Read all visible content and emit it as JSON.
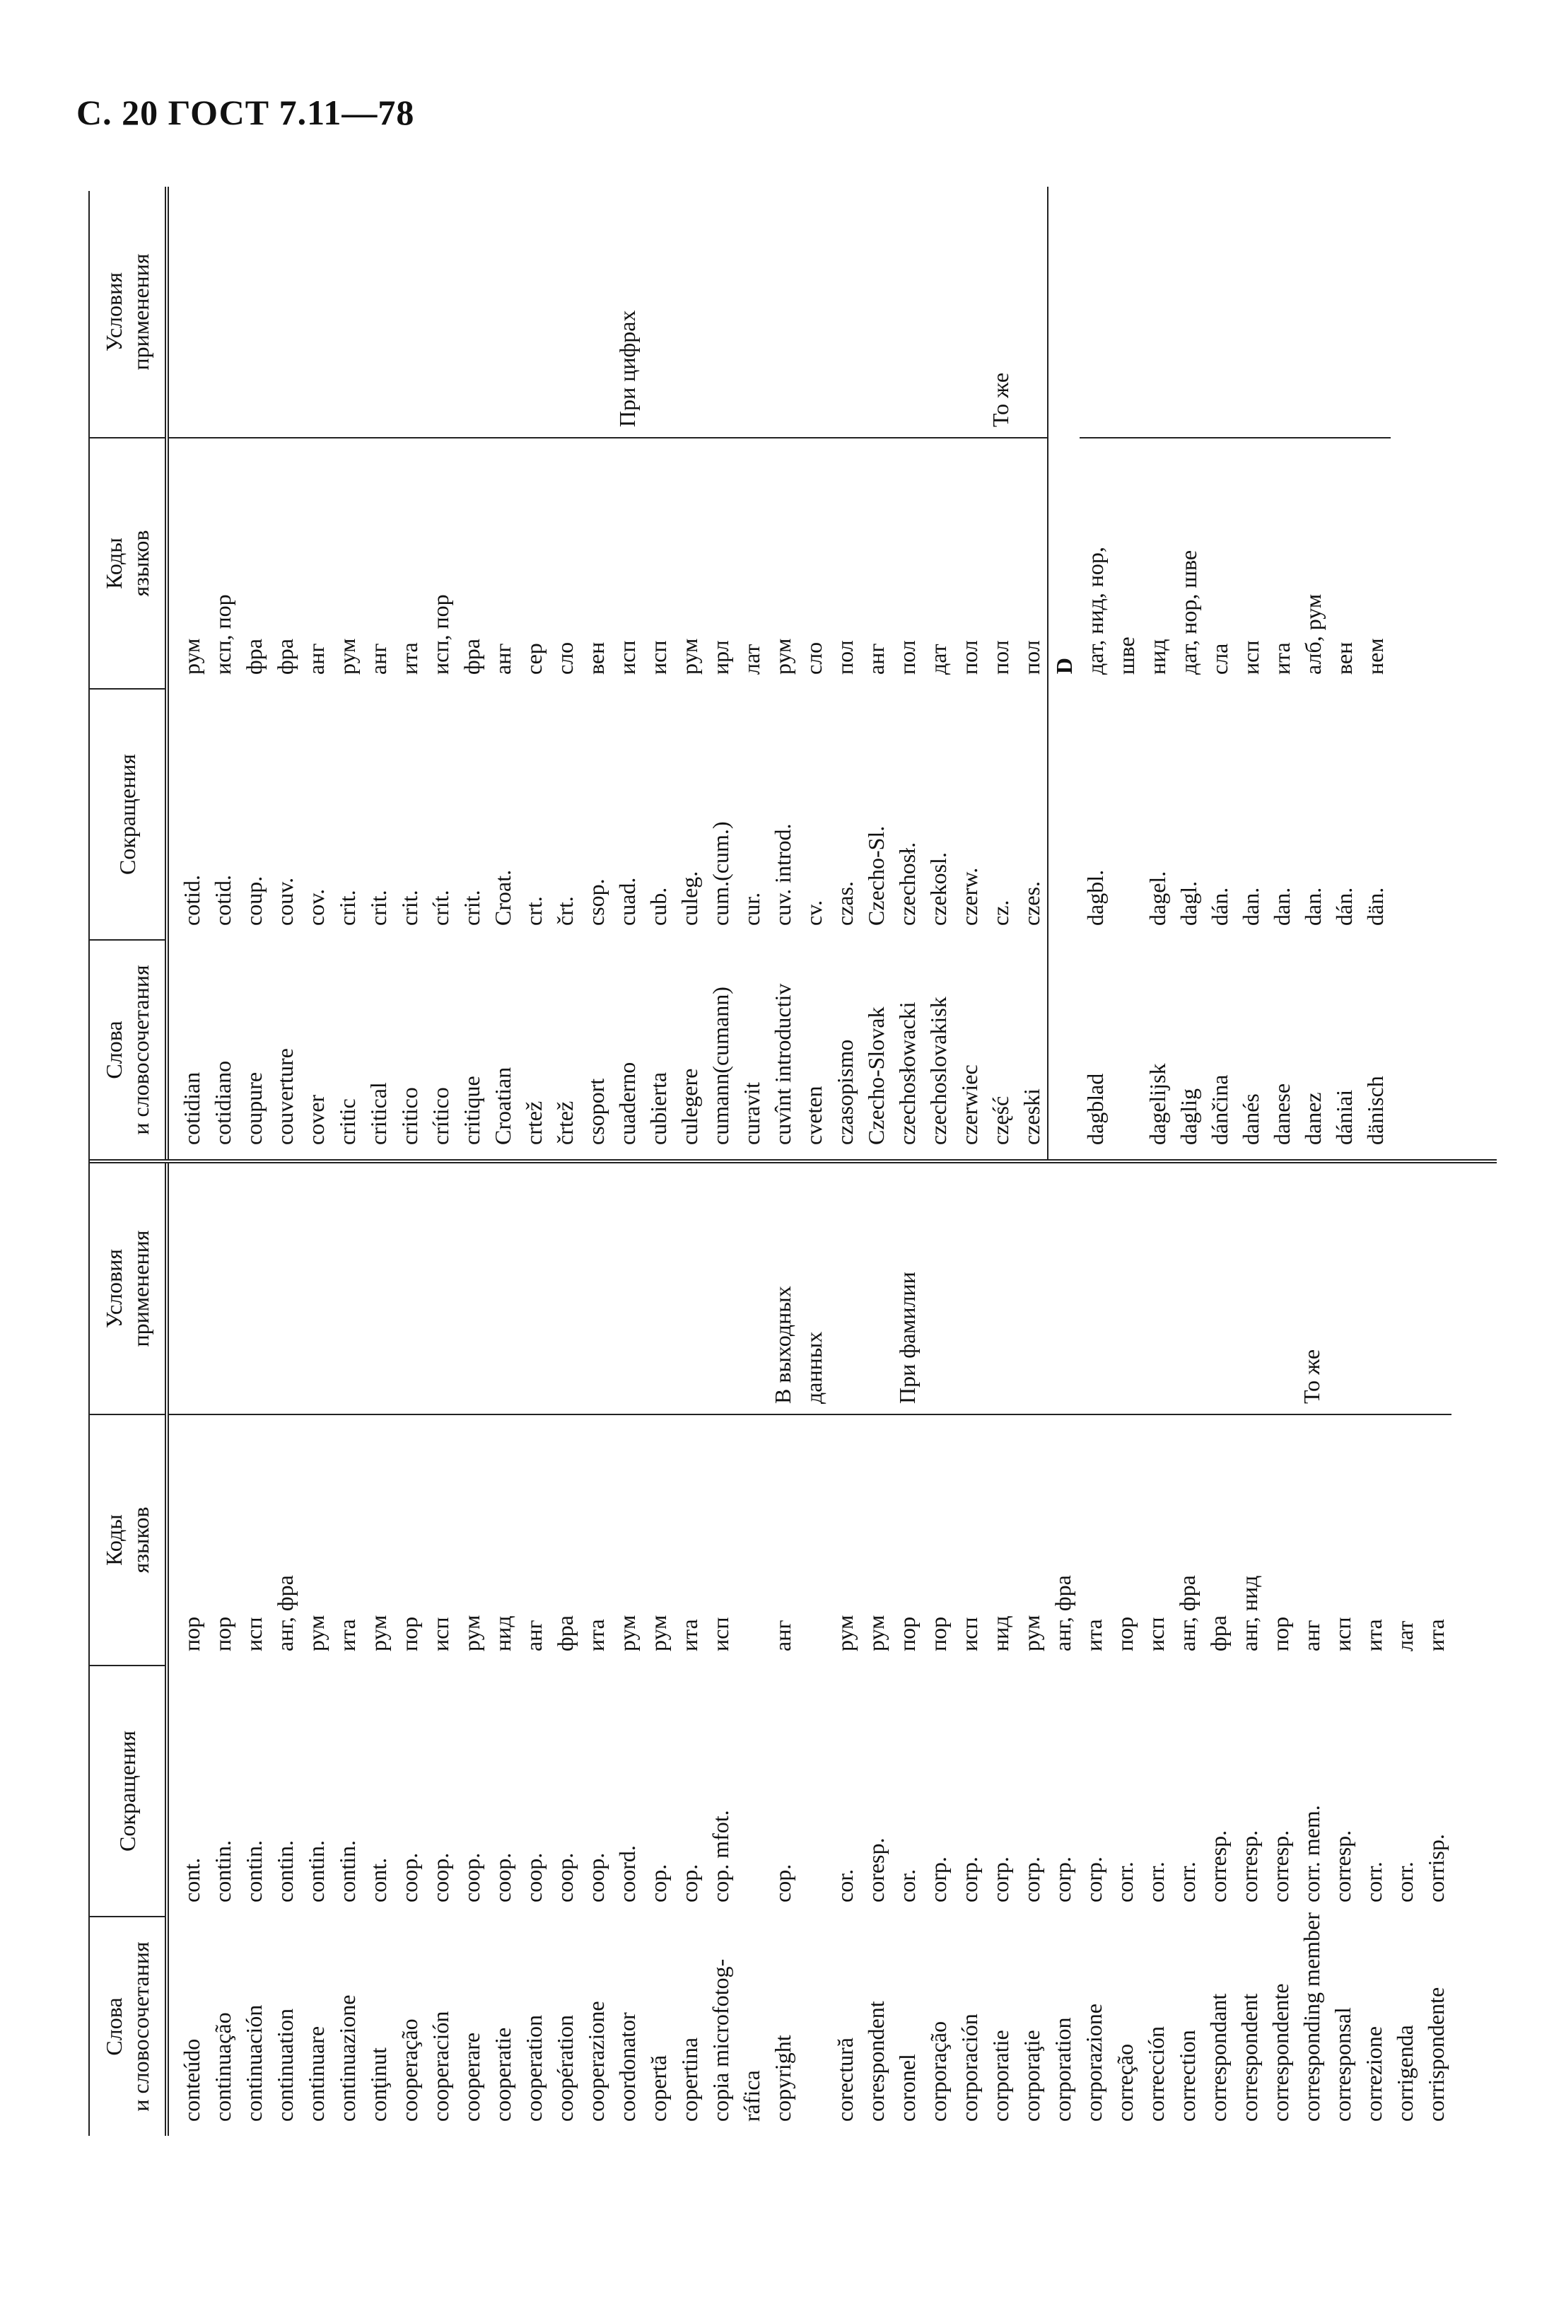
{
  "header": {
    "page_title": "С. 20 ГОСТ 7.11—78"
  },
  "table": {
    "columns": [
      [
        "Слова",
        "и словосочетания"
      ],
      [
        "Сокращения"
      ],
      [
        "Коды",
        "языков"
      ],
      [
        "Условия",
        "применения"
      ]
    ],
    "left_rows": [
      {
        "word": "conteúdo",
        "abbr": "cont.",
        "codes": "пор"
      },
      {
        "word": "continuação",
        "abbr": "contin.",
        "codes": "пор"
      },
      {
        "word": "continuación",
        "abbr": "contin.",
        "codes": "исп"
      },
      {
        "word": "continuation",
        "abbr": "contin.",
        "codes": "анг, фра"
      },
      {
        "word": "continuare",
        "abbr": "contin.",
        "codes": "рум"
      },
      {
        "word": "continuazione",
        "abbr": "contin.",
        "codes": "ита"
      },
      {
        "word": "conţinut",
        "abbr": "cont.",
        "codes": "рум"
      },
      {
        "word": "cooperação",
        "abbr": "coop.",
        "codes": "пор"
      },
      {
        "word": "cooperación",
        "abbr": "coop.",
        "codes": "исп"
      },
      {
        "word": "cooperare",
        "abbr": "coop.",
        "codes": "рум"
      },
      {
        "word": "cooperatie",
        "abbr": "coop.",
        "codes": "нид"
      },
      {
        "word": "cooperation",
        "abbr": "coop.",
        "codes": "анг"
      },
      {
        "word": "coopération",
        "abbr": "coop.",
        "codes": "фра"
      },
      {
        "word": "cooperazione",
        "abbr": "coop.",
        "codes": "ита"
      },
      {
        "word": "coordonator",
        "abbr": "coord.",
        "codes": "рум"
      },
      {
        "word": "copertă",
        "abbr": "cop.",
        "codes": "рум"
      },
      {
        "word": "copertina",
        "abbr": "cop.",
        "codes": "ита"
      },
      {
        "word": [
          "copia microfotog-",
          "ráfica"
        ],
        "abbr": "cop. mfot.",
        "codes": "исп"
      },
      {
        "word": "copyright",
        "abbr": "cop.",
        "codes": "анг",
        "note": [
          "В выходных",
          "данных"
        ]
      },
      {
        "word": "corectură",
        "abbr": "cor.",
        "codes": "рум"
      },
      {
        "word": "corespondent",
        "abbr": "coresp.",
        "codes": "рум"
      },
      {
        "word": "coronel",
        "abbr": "cor.",
        "codes": "пор",
        "note": "При фамилии"
      },
      {
        "word": "corporação",
        "abbr": "corp.",
        "codes": "пор"
      },
      {
        "word": "corporación",
        "abbr": "corp.",
        "codes": "исп"
      },
      {
        "word": "corporatie",
        "abbr": "corp.",
        "codes": "нид"
      },
      {
        "word": "corporaţie",
        "abbr": "corp.",
        "codes": "рум"
      },
      {
        "word": "corporation",
        "abbr": "corp.",
        "codes": "анг, фра"
      },
      {
        "word": "corporazione",
        "abbr": "corp.",
        "codes": "ита"
      },
      {
        "word": "correção",
        "abbr": "corr.",
        "codes": "пор"
      },
      {
        "word": "corrección",
        "abbr": "corr.",
        "codes": "исп"
      },
      {
        "word": "correction",
        "abbr": "corr.",
        "codes": "анг, фра"
      },
      {
        "word": "correspondant",
        "abbr": "corresp.",
        "codes": "фра"
      },
      {
        "word": "correspondent",
        "abbr": "corresp.",
        "codes": "анг, нид"
      },
      {
        "word": "correspondente",
        "abbr": "corresp.",
        "codes": "пор"
      },
      {
        "word": "corresponding member",
        "abbr": "corr. mem.",
        "codes": "анг",
        "note": "То же"
      },
      {
        "word": "corresponsal",
        "abbr": "corresp.",
        "codes": "исп"
      },
      {
        "word": "correzione",
        "abbr": "corr.",
        "codes": "ита"
      },
      {
        "word": "corrigenda",
        "abbr": "corr.",
        "codes": "лат"
      },
      {
        "word": "corrispondente",
        "abbr": "corrisp.",
        "codes": "ита"
      }
    ],
    "right_rows": [
      {
        "word": "cotidian",
        "abbr": "cotid.",
        "codes": "рум"
      },
      {
        "word": "cotidiano",
        "abbr": "cotid.",
        "codes": "исп, пор"
      },
      {
        "word": "coupure",
        "abbr": "coup.",
        "codes": "фра"
      },
      {
        "word": "couverture",
        "abbr": "couv.",
        "codes": "фра"
      },
      {
        "word": "cover",
        "abbr": "cov.",
        "codes": "анг"
      },
      {
        "word": "critic",
        "abbr": "crit.",
        "codes": "рум"
      },
      {
        "word": "critical",
        "abbr": "crit.",
        "codes": "анг"
      },
      {
        "word": "critico",
        "abbr": "crit.",
        "codes": "ита"
      },
      {
        "word": "crítico",
        "abbr": "crít.",
        "codes": "исп, пор"
      },
      {
        "word": "critique",
        "abbr": "crit.",
        "codes": "фра"
      },
      {
        "word": "Croatian",
        "abbr": "Croat.",
        "codes": "анг"
      },
      {
        "word": "crtež",
        "abbr": "crt.",
        "codes": "сер"
      },
      {
        "word": "črtež",
        "abbr": "črt.",
        "codes": "сло"
      },
      {
        "word": "csoport",
        "abbr": "csop.",
        "codes": "вен"
      },
      {
        "word": "cuaderno",
        "abbr": "cuad.",
        "codes": "исп",
        "note": "При цифрах"
      },
      {
        "word": "cubierta",
        "abbr": "cub.",
        "codes": "исп"
      },
      {
        "word": "culegere",
        "abbr": "culeg.",
        "codes": "рум"
      },
      {
        "word": "cumann(cumann)",
        "abbr": "cum.(cum.)",
        "codes": "ирл"
      },
      {
        "word": "curavit",
        "abbr": "cur.",
        "codes": "лат"
      },
      {
        "word": "cuvînt introductiv",
        "abbr": "cuv. introd.",
        "codes": "рум"
      },
      {
        "word": "cveten",
        "abbr": "cv.",
        "codes": "сло"
      },
      {
        "word": "czasopismo",
        "abbr": "czas.",
        "codes": "пол"
      },
      {
        "word": "Czecho-Slovak",
        "abbr": "Czecho-Sl.",
        "codes": "анг"
      },
      {
        "word": "czechosłowacki",
        "abbr": "czechosł.",
        "codes": "пол"
      },
      {
        "word": "czechoslovakisk",
        "abbr": "czekosl.",
        "codes": "дат"
      },
      {
        "word": "czerwiec",
        "abbr": "czerw.",
        "codes": "пол"
      },
      {
        "word": "część",
        "abbr": "cz.",
        "codes": "пол",
        "note": "То же"
      },
      {
        "word": "czeski",
        "abbr": "czes.",
        "codes": "пол"
      }
    ],
    "section": "D",
    "section_rows": [
      {
        "word": "dagblad",
        "abbr": "dagbl.",
        "codes": [
          "дат, нид, нор,",
          "шве"
        ]
      },
      {
        "word": "dagelijsk",
        "abbr": "dagel.",
        "codes": "нид"
      },
      {
        "word": "daglig",
        "abbr": "dagl.",
        "codes": "дат, нор, шве"
      },
      {
        "word": "dánčina",
        "abbr": "dán.",
        "codes": "сла"
      },
      {
        "word": "danés",
        "abbr": "dan.",
        "codes": "исп"
      },
      {
        "word": "danese",
        "abbr": "dan.",
        "codes": "ита"
      },
      {
        "word": "danez",
        "abbr": "dan.",
        "codes": "алб, рум"
      },
      {
        "word": "dániai",
        "abbr": "dán.",
        "codes": "вен"
      },
      {
        "word": "dänisch",
        "abbr": "dän.",
        "codes": "нем"
      }
    ]
  }
}
